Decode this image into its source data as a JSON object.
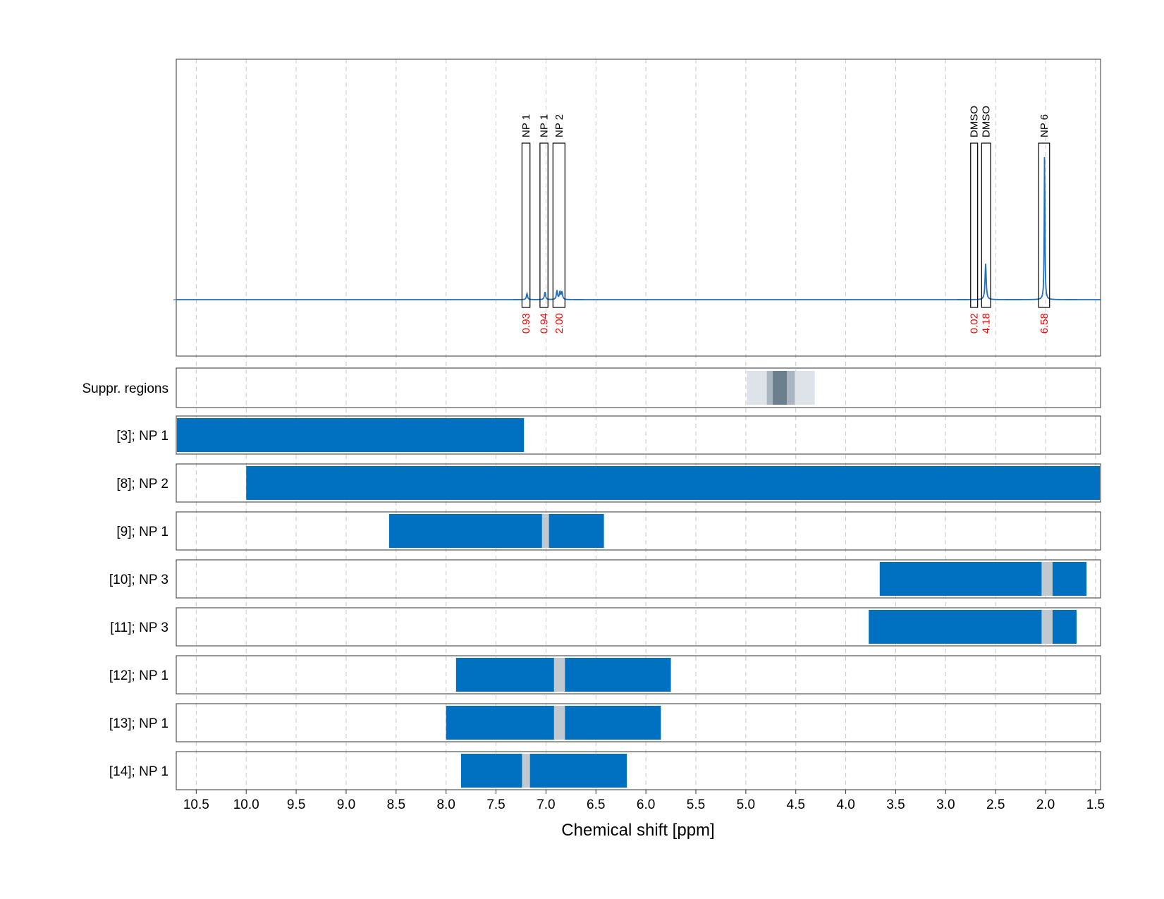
{
  "chart_data": {
    "type": "line",
    "xlabel": "Chemical shift [ppm]",
    "xlim": [
      10.7,
      1.45
    ],
    "x_ticks": [
      10.5,
      10.0,
      9.5,
      9.0,
      8.5,
      8.0,
      7.5,
      7.0,
      6.5,
      6.0,
      5.5,
      5.0,
      4.5,
      4.0,
      3.5,
      3.0,
      2.5,
      2.0,
      1.5
    ],
    "x_tick_labels": [
      "10.5",
      "10.0",
      "9.5",
      "9.0",
      "8.5",
      "8.0",
      "7.5",
      "7.0",
      "6.5",
      "6.0",
      "5.5",
      "5.0",
      "4.5",
      "4.0",
      "3.5",
      "3.0",
      "2.5",
      "2.0",
      "1.5"
    ],
    "grid": "vertical dashed",
    "colors": {
      "spectrum": "#1f6fbf",
      "bar": "#0070c0",
      "gap": "#c0c8d0",
      "integral": "#ff0000"
    },
    "spectrum": {
      "baseline": 0,
      "peaks": [
        {
          "ppm": 7.19,
          "height": 0.04
        },
        {
          "ppm": 7.01,
          "height": 0.05
        },
        {
          "ppm": 6.89,
          "height": 0.06
        },
        {
          "ppm": 6.86,
          "height": 0.05
        },
        {
          "ppm": 6.84,
          "height": 0.05
        },
        {
          "ppm": 2.6,
          "height": 0.24
        },
        {
          "ppm": 2.01,
          "height": 1.0
        }
      ]
    },
    "integration_regions": [
      {
        "label": "NP 1",
        "from": 7.24,
        "to": 7.16,
        "integral": "0.93"
      },
      {
        "label": "NP 1",
        "from": 7.06,
        "to": 6.98,
        "integral": "0.94"
      },
      {
        "label": "NP 2",
        "from": 6.93,
        "to": 6.81,
        "integral": "2.00"
      },
      {
        "label": "DMSO",
        "from": 2.75,
        "to": 2.68,
        "integral": "0.02"
      },
      {
        "label": "DMSO",
        "from": 2.64,
        "to": 2.55,
        "integral": "4.18"
      },
      {
        "label": "NP 6",
        "from": 2.07,
        "to": 1.96,
        "integral": "6.58"
      }
    ],
    "suppression": {
      "label": "Suppr. regions",
      "bands": [
        {
          "from": 4.99,
          "to": 4.31,
          "level": "light"
        },
        {
          "from": 4.79,
          "to": 4.51,
          "level": "medium"
        },
        {
          "from": 4.73,
          "to": 4.59,
          "level": "dark"
        }
      ]
    },
    "rows": [
      {
        "label": "[3]; NP 1",
        "from": 10.7,
        "to": 7.22,
        "gaps": []
      },
      {
        "label": "[8]; NP 2",
        "from": 10.0,
        "to": 1.45,
        "gaps": []
      },
      {
        "label": "[9]; NP 1",
        "from": 8.57,
        "to": 6.42,
        "gaps": [
          [
            7.04,
            6.97
          ]
        ]
      },
      {
        "label": "[10]; NP 3",
        "from": 3.66,
        "to": 1.59,
        "gaps": [
          [
            2.04,
            1.93
          ]
        ]
      },
      {
        "label": "[11]; NP 3",
        "from": 3.77,
        "to": 1.69,
        "gaps": [
          [
            2.04,
            1.93
          ]
        ]
      },
      {
        "label": "[12]; NP 1",
        "from": 7.9,
        "to": 5.75,
        "gaps": [
          [
            6.92,
            6.81
          ]
        ]
      },
      {
        "label": "[13]; NP 1",
        "from": 8.0,
        "to": 5.85,
        "gaps": [
          [
            6.92,
            6.81
          ]
        ]
      },
      {
        "label": "[14]; NP 1",
        "from": 7.85,
        "to": 6.19,
        "gaps": [
          [
            7.24,
            7.16
          ]
        ]
      }
    ]
  }
}
